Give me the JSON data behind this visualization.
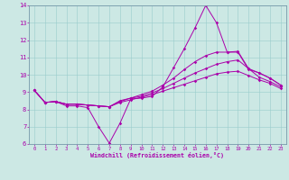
{
  "title": "",
  "xlabel": "Windchill (Refroidissement éolien,°C)",
  "bg_color": "#cce8e4",
  "line_color": "#aa00aa",
  "grid_color": "#99cccc",
  "spine_color": "#7799aa",
  "xlim": [
    -0.5,
    23.5
  ],
  "ylim": [
    6,
    14
  ],
  "xticks": [
    0,
    1,
    2,
    3,
    4,
    5,
    6,
    7,
    8,
    9,
    10,
    11,
    12,
    13,
    14,
    15,
    16,
    17,
    18,
    19,
    20,
    21,
    22,
    23
  ],
  "yticks": [
    6,
    7,
    8,
    9,
    10,
    11,
    12,
    13,
    14
  ],
  "line1_x": [
    0,
    1,
    2,
    3,
    4,
    5,
    6,
    7,
    8,
    9,
    10,
    11,
    12,
    13,
    14,
    15,
    16,
    17,
    18,
    19,
    20,
    21,
    22,
    23
  ],
  "line1_y": [
    9.1,
    8.4,
    8.45,
    8.2,
    8.2,
    8.1,
    7.0,
    6.05,
    7.2,
    8.6,
    8.65,
    8.75,
    9.3,
    10.4,
    11.5,
    12.7,
    14.0,
    13.0,
    11.3,
    11.35,
    10.35,
    10.1,
    9.8,
    9.4
  ],
  "line2_x": [
    0,
    1,
    2,
    3,
    4,
    5,
    6,
    7,
    8,
    9,
    10,
    11,
    12,
    13,
    14,
    15,
    16,
    17,
    18,
    19,
    20,
    21,
    22,
    23
  ],
  "line2_y": [
    9.1,
    8.4,
    8.45,
    8.3,
    8.3,
    8.25,
    8.2,
    8.15,
    8.5,
    8.65,
    8.85,
    9.05,
    9.4,
    9.8,
    10.3,
    10.75,
    11.1,
    11.3,
    11.3,
    11.3,
    10.3,
    10.1,
    9.8,
    9.4
  ],
  "line3_x": [
    0,
    1,
    2,
    3,
    4,
    5,
    6,
    7,
    8,
    9,
    10,
    11,
    12,
    13,
    14,
    15,
    16,
    17,
    18,
    19,
    20,
    21,
    22,
    23
  ],
  "line3_y": [
    9.1,
    8.4,
    8.45,
    8.3,
    8.3,
    8.25,
    8.2,
    8.15,
    8.45,
    8.65,
    8.75,
    8.95,
    9.2,
    9.5,
    9.8,
    10.1,
    10.35,
    10.6,
    10.75,
    10.85,
    10.35,
    9.85,
    9.6,
    9.3
  ],
  "line4_x": [
    0,
    1,
    2,
    3,
    4,
    5,
    6,
    7,
    8,
    9,
    10,
    11,
    12,
    13,
    14,
    15,
    16,
    17,
    18,
    19,
    20,
    21,
    22,
    23
  ],
  "line4_y": [
    9.1,
    8.4,
    8.45,
    8.3,
    8.3,
    8.25,
    8.2,
    8.15,
    8.4,
    8.55,
    8.7,
    8.85,
    9.05,
    9.25,
    9.45,
    9.65,
    9.85,
    10.05,
    10.15,
    10.2,
    9.95,
    9.7,
    9.5,
    9.2
  ]
}
